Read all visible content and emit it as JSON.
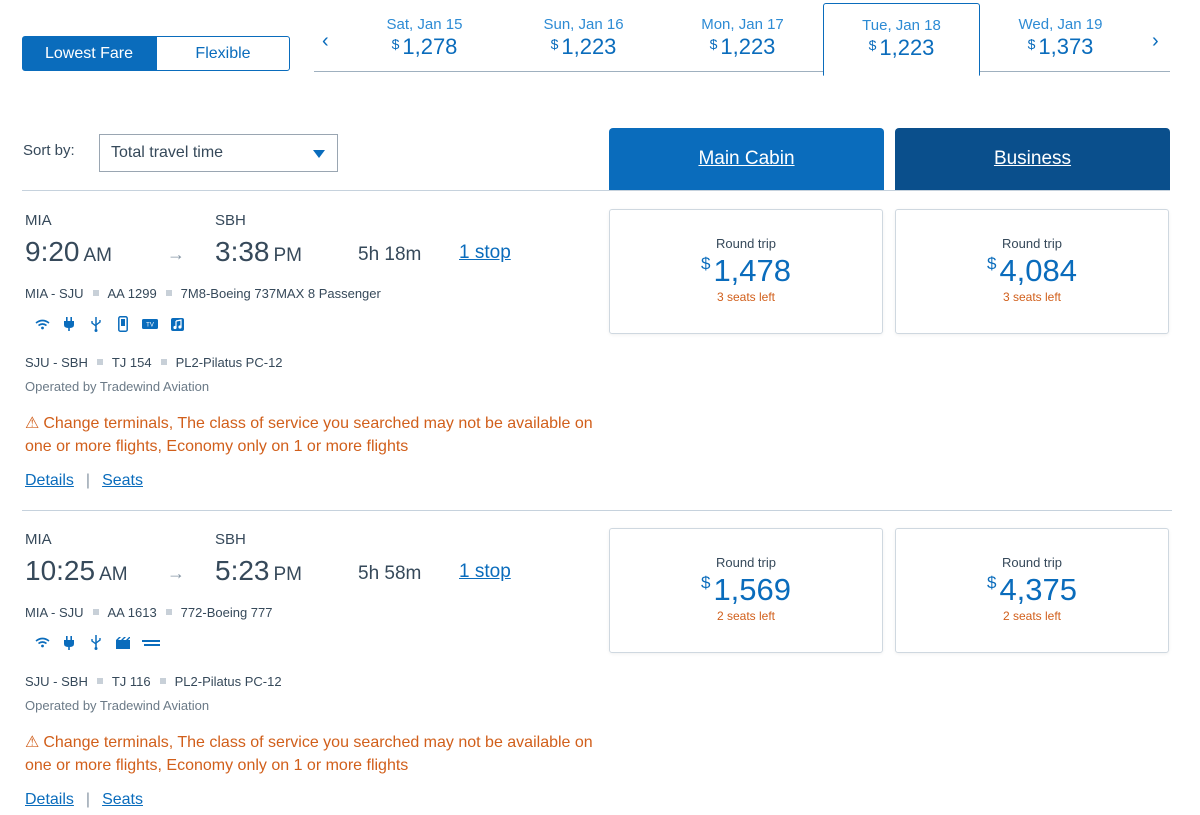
{
  "fare_toggle": {
    "lowest_label": "Lowest Fare",
    "flexible_label": "Flexible"
  },
  "dates": [
    {
      "day": "Sat, Jan 15",
      "currency": "$",
      "price": "1,278"
    },
    {
      "day": "Sun, Jan 16",
      "currency": "$",
      "price": "1,223"
    },
    {
      "day": "Mon, Jan 17",
      "currency": "$",
      "price": "1,223"
    },
    {
      "day": "Tue, Jan 18",
      "currency": "$",
      "price": "1,223"
    },
    {
      "day": "Wed, Jan 19",
      "currency": "$",
      "price": "1,373"
    }
  ],
  "nav": {
    "prev_icon": "‹",
    "next_icon": "›"
  },
  "sort": {
    "label": "Sort by:",
    "value": "Total travel time"
  },
  "cabins": {
    "main": "Main Cabin",
    "business": "Business"
  },
  "flights": [
    {
      "origin": "MIA",
      "destination": "SBH",
      "depart": "9:20",
      "depart_ampm": "AM",
      "arrive": "3:38",
      "arrive_ampm": "PM",
      "arrow": "→",
      "duration": "5h  18m",
      "stops": "1 stop",
      "seg1": {
        "route": "MIA - SJU",
        "flight": "AA 1299",
        "aircraft": "7M8-Boeing 737MAX 8 Passenger"
      },
      "seg2": {
        "route": "SJU - SBH",
        "flight": "TJ 154",
        "aircraft": "PL2-Pilatus PC-12"
      },
      "operated": "Operated by Tradewind Aviation",
      "warning_icon": "⚠",
      "warning": "Change terminals, The class of service you searched may not be available on one or more flights, Economy only on 1 or more flights",
      "details": "Details",
      "seats": "Seats",
      "main": {
        "label": "Round trip",
        "currency": "$",
        "price": "1,478",
        "seats_left": "3 seats left"
      },
      "business": {
        "label": "Round trip",
        "currency": "$",
        "price": "4,084",
        "seats_left": "3 seats left"
      }
    },
    {
      "origin": "MIA",
      "destination": "SBH",
      "depart": "10:25",
      "depart_ampm": "AM",
      "arrive": "5:23",
      "arrive_ampm": "PM",
      "arrow": "→",
      "duration": "5h  58m",
      "stops": "1 stop",
      "seg1": {
        "route": "MIA - SJU",
        "flight": "AA 1613",
        "aircraft": "772-Boeing 777"
      },
      "seg2": {
        "route": "SJU - SBH",
        "flight": "TJ 116",
        "aircraft": "PL2-Pilatus PC-12"
      },
      "operated": "Operated by Tradewind Aviation",
      "warning_icon": "⚠",
      "warning": "Change terminals, The class of service you searched may not be available on one or more flights, Economy only on 1 or more flights",
      "details": "Details",
      "seats": "Seats",
      "main": {
        "label": "Round trip",
        "currency": "$",
        "price": "1,569",
        "seats_left": "2 seats left"
      },
      "business": {
        "label": "Round trip",
        "currency": "$",
        "price": "4,375",
        "seats_left": "2 seats left"
      }
    }
  ],
  "colors": {
    "accent": "#0a6cbc",
    "business": "#0a4f8c",
    "warning": "#d15f1b"
  }
}
